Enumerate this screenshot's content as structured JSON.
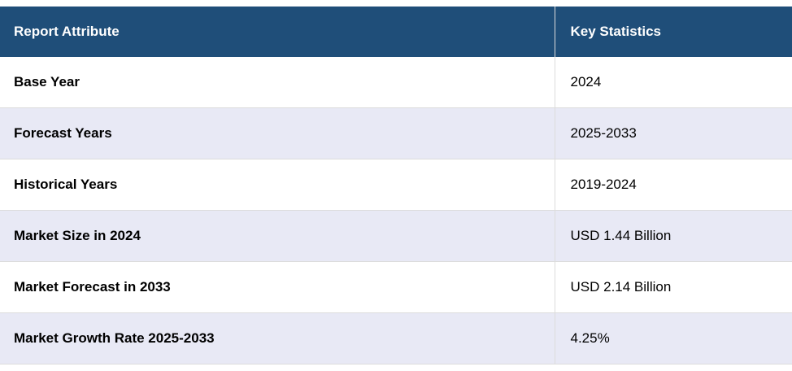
{
  "table": {
    "headers": [
      "Report Attribute",
      "Key Statistics"
    ],
    "rows": [
      [
        "Base Year",
        "2024"
      ],
      [
        "Forecast Years",
        "2025-2033"
      ],
      [
        "Historical Years",
        "2019-2024"
      ],
      [
        "Market Size in 2024",
        "USD 1.44 Billion"
      ],
      [
        "Market Forecast in 2033",
        "USD 2.14 Billion"
      ],
      [
        "Market Growth Rate 2025-2033",
        "4.25%"
      ]
    ]
  },
  "colors": {
    "header_bg": "#1f4e79",
    "alt_row_bg": "#e8e9f5",
    "row_bg": "#ffffff"
  }
}
